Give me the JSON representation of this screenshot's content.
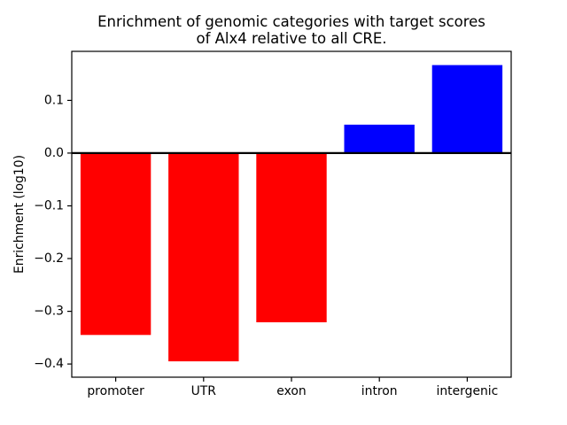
{
  "figure": {
    "title": "Enrichment of genomic categories with target scores\nof Alx4 relative to all CRE.",
    "ylabel": "Enrichment (log10)"
  },
  "chart_data": {
    "type": "bar",
    "title": "Enrichment of genomic categories with target scores of Alx4 relative to all CRE.",
    "xlabel": "",
    "ylabel": "Enrichment (log10)",
    "categories": [
      "promoter",
      "UTR",
      "exon",
      "intron",
      "intergenic"
    ],
    "values": [
      -0.345,
      -0.395,
      -0.321,
      0.054,
      0.167
    ],
    "bar_colors": [
      "#ff0000",
      "#ff0000",
      "#ff0000",
      "#0000ff",
      "#0000ff"
    ],
    "negative_color": "#ff0000",
    "positive_color": "#0000ff",
    "ylim": [
      -0.425,
      0.193
    ],
    "yticks": [
      0.1,
      0.0,
      -0.1,
      -0.2,
      -0.3,
      -0.4
    ],
    "ytick_labels": [
      "0.1",
      "0.0",
      "−0.1",
      "−0.2",
      "−0.3",
      "−0.4"
    ],
    "zero_line": true,
    "grid": false,
    "legend": null,
    "axis_color": "#000000",
    "background_color": "#ffffff"
  }
}
